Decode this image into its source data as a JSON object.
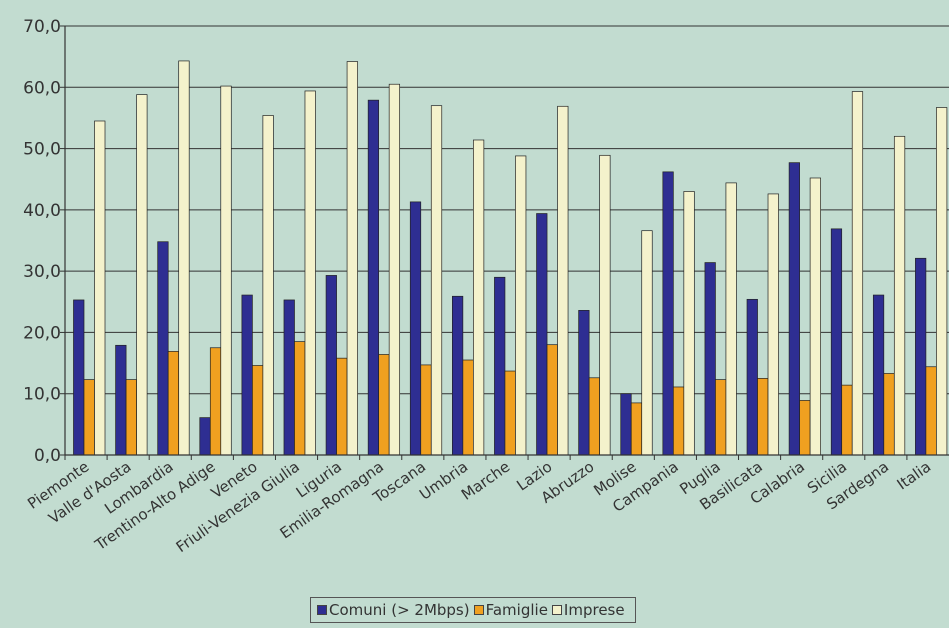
{
  "chart_data": {
    "type": "bar",
    "categories": [
      "Piemonte",
      "Valle d'Aosta",
      "Lombardia",
      "Trentino-Alto Adige",
      "Veneto",
      "Friuli-Venezia Giulia",
      "Liguria",
      "Emilia-Romagna",
      "Toscana",
      "Umbria",
      "Marche",
      "Lazio",
      "Abruzzo",
      "Molise",
      "Campania",
      "Puglia",
      "Basilicata",
      "Calabria",
      "Sicilia",
      "Sardegna",
      "Italia"
    ],
    "series": [
      {
        "name": "Comuni (> 2Mbps)",
        "color": "#2e2e92",
        "values": [
          25.3,
          17.9,
          34.8,
          6.1,
          26.1,
          25.3,
          29.3,
          57.9,
          41.3,
          25.9,
          29.0,
          39.4,
          23.6,
          10.0,
          46.2,
          31.4,
          25.4,
          47.7,
          36.9,
          26.1,
          32.1
        ]
      },
      {
        "name": "Famiglie",
        "color": "#f0a020",
        "values": [
          12.3,
          12.3,
          16.9,
          17.5,
          14.6,
          18.5,
          15.8,
          16.4,
          14.7,
          15.5,
          13.7,
          18.0,
          12.6,
          8.5,
          11.1,
          12.3,
          12.5,
          8.9,
          11.4,
          13.3,
          14.4
        ]
      },
      {
        "name": "Imprese",
        "color": "#f4f2cc",
        "values": [
          54.5,
          58.8,
          64.3,
          60.2,
          55.4,
          59.4,
          64.2,
          60.5,
          57.0,
          51.4,
          48.8,
          56.9,
          48.9,
          36.6,
          43.0,
          44.4,
          42.6,
          45.2,
          59.3,
          52.0,
          56.7
        ]
      }
    ],
    "yticks": [
      "0,0",
      "10,0",
      "20,0",
      "30,0",
      "40,0",
      "50,0",
      "60,0",
      "70,0"
    ],
    "ylim": [
      0,
      70
    ],
    "grid": true,
    "legend_position": "bottom"
  }
}
